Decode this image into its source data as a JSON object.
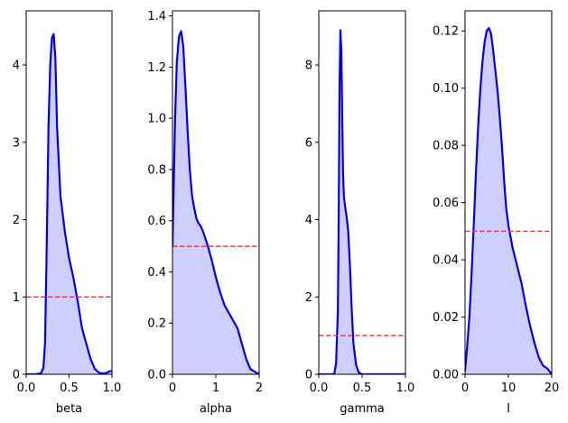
{
  "chart_data": [
    {
      "type": "area",
      "xlabel": "beta",
      "xlim": [
        0,
        1
      ],
      "ylim": [
        0,
        4.7
      ],
      "xticks": [
        0.0,
        0.5,
        1.0
      ],
      "xtick_labels": [
        "0.0",
        "0.5",
        "1.0"
      ],
      "yticks": [
        0,
        1,
        2,
        3,
        4
      ],
      "ytick_labels": [
        "0",
        "1",
        "2",
        "3",
        "4"
      ],
      "reference_line": 1.0,
      "curve": {
        "x": [
          0.0,
          0.1,
          0.17,
          0.2,
          0.22,
          0.24,
          0.26,
          0.28,
          0.3,
          0.32,
          0.34,
          0.36,
          0.4,
          0.45,
          0.5,
          0.55,
          0.6,
          0.65,
          0.7,
          0.75,
          0.8,
          0.85,
          0.9,
          0.94,
          0.97,
          1.0
        ],
        "y": [
          0.0,
          0.0,
          0.01,
          0.08,
          0.4,
          1.7,
          3.2,
          4.0,
          4.35,
          4.4,
          4.1,
          3.2,
          2.3,
          1.85,
          1.5,
          1.25,
          0.95,
          0.6,
          0.4,
          0.2,
          0.07,
          0.02,
          0.01,
          0.02,
          0.04,
          0.04
        ]
      }
    },
    {
      "type": "area",
      "xlabel": "alpha",
      "xlim": [
        0,
        2
      ],
      "ylim": [
        0,
        1.42
      ],
      "xticks": [
        0,
        1,
        2
      ],
      "xtick_labels": [
        "0",
        "1",
        "2"
      ],
      "yticks": [
        0.0,
        0.2,
        0.4,
        0.6,
        0.8,
        1.0,
        1.2,
        1.4
      ],
      "ytick_labels": [
        "0.0",
        "0.2",
        "0.4",
        "0.6",
        "0.8",
        "1.0",
        "1.2",
        "1.4"
      ],
      "reference_line": 0.5,
      "curve": {
        "x": [
          0.0,
          0.03,
          0.06,
          0.1,
          0.15,
          0.2,
          0.25,
          0.3,
          0.35,
          0.4,
          0.45,
          0.5,
          0.55,
          0.6,
          0.65,
          0.7,
          0.8,
          0.9,
          1.0,
          1.1,
          1.2,
          1.3,
          1.4,
          1.5,
          1.6,
          1.7,
          1.8,
          1.9,
          2.0
        ],
        "y": [
          0.5,
          0.75,
          1.0,
          1.22,
          1.32,
          1.34,
          1.28,
          1.12,
          0.95,
          0.8,
          0.7,
          0.65,
          0.61,
          0.59,
          0.58,
          0.56,
          0.51,
          0.45,
          0.38,
          0.32,
          0.27,
          0.24,
          0.21,
          0.18,
          0.12,
          0.06,
          0.02,
          0.01,
          0.0
        ]
      }
    },
    {
      "type": "area",
      "xlabel": "gamma",
      "xlim": [
        0,
        1
      ],
      "ylim": [
        0,
        9.4
      ],
      "xticks": [
        0.0,
        0.5,
        1.0
      ],
      "xtick_labels": [
        "0.0",
        "0.5",
        "1.0"
      ],
      "yticks": [
        0,
        2,
        4,
        6,
        8
      ],
      "ytick_labels": [
        "0",
        "2",
        "4",
        "6",
        "8"
      ],
      "reference_line": 1.0,
      "curve": {
        "x": [
          0.0,
          0.15,
          0.18,
          0.2,
          0.22,
          0.23,
          0.24,
          0.25,
          0.26,
          0.27,
          0.28,
          0.29,
          0.3,
          0.32,
          0.34,
          0.36,
          0.38,
          0.4,
          0.43,
          0.46,
          0.5,
          0.6,
          1.0
        ],
        "y": [
          0.0,
          0.0,
          0.02,
          0.3,
          1.6,
          4.0,
          7.5,
          8.9,
          8.4,
          6.8,
          5.2,
          4.6,
          4.4,
          4.1,
          3.7,
          2.8,
          1.7,
          0.8,
          0.25,
          0.05,
          0.0,
          0.0,
          0.0
        ]
      }
    },
    {
      "type": "area",
      "xlabel": "I",
      "xlim": [
        0,
        20
      ],
      "ylim": [
        0,
        0.127
      ],
      "xticks": [
        0,
        10,
        20
      ],
      "xtick_labels": [
        "0",
        "10",
        "20"
      ],
      "yticks": [
        0.0,
        0.02,
        0.04,
        0.06,
        0.08,
        0.1,
        0.12
      ],
      "ytick_labels": [
        "0.00",
        "0.02",
        "0.04",
        "0.06",
        "0.08",
        "0.10",
        "0.12"
      ],
      "reference_line": 0.05,
      "curve": {
        "x": [
          0.0,
          0.5,
          1.0,
          1.5,
          2.0,
          2.5,
          3.0,
          3.5,
          4.0,
          4.5,
          5.0,
          5.5,
          6.0,
          6.5,
          7.0,
          7.5,
          8.0,
          8.5,
          9.0,
          9.5,
          10.0,
          11.0,
          12.0,
          13.0,
          14.0,
          15.0,
          16.0,
          17.0,
          18.0,
          19.0,
          20.0
        ],
        "y": [
          0.001,
          0.01,
          0.02,
          0.035,
          0.052,
          0.07,
          0.086,
          0.099,
          0.109,
          0.116,
          0.12,
          0.121,
          0.119,
          0.113,
          0.106,
          0.099,
          0.09,
          0.08,
          0.068,
          0.058,
          0.052,
          0.044,
          0.038,
          0.032,
          0.024,
          0.017,
          0.011,
          0.006,
          0.003,
          0.002,
          0.0
        ]
      }
    }
  ],
  "colors": {
    "curve": "#0000ee",
    "fill": "#cfcfff",
    "reference_line": "#ee3b3b",
    "axes": "#000000"
  }
}
